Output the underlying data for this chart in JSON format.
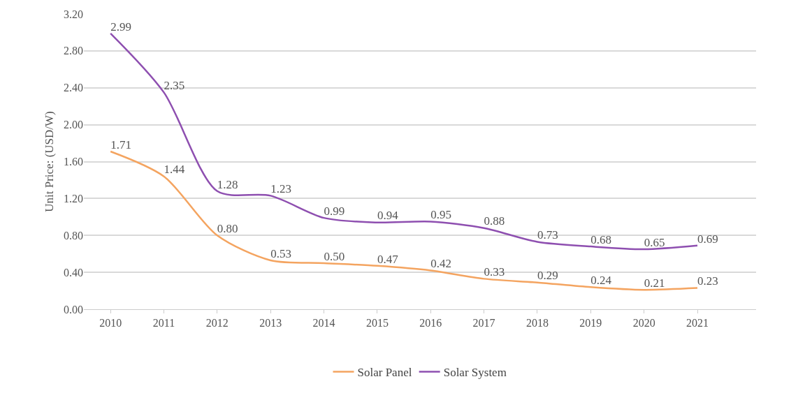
{
  "chart_data": {
    "type": "line",
    "ylabel": "Unit Price: (USD/W)",
    "categories": [
      "2010",
      "2011",
      "2012",
      "2013",
      "2014",
      "2015",
      "2016",
      "2017",
      "2018",
      "2019",
      "2020",
      "2021"
    ],
    "series": [
      {
        "name": "Solar Panel",
        "color": "#f4a460",
        "values": [
          1.71,
          1.44,
          0.8,
          0.53,
          0.5,
          0.47,
          0.42,
          0.33,
          0.29,
          0.24,
          0.21,
          0.23
        ],
        "value_labels": [
          "1.71",
          "1.44",
          "0.80",
          "0.53",
          "0.50",
          "0.47",
          "0.42",
          "0.33",
          "0.29",
          "0.24",
          "0.21",
          "0.23"
        ]
      },
      {
        "name": "Solar System",
        "color": "#8e4fb0",
        "values": [
          2.99,
          2.35,
          1.28,
          1.23,
          0.99,
          0.94,
          0.95,
          0.88,
          0.73,
          0.68,
          0.65,
          0.69
        ],
        "value_labels": [
          "2.99",
          "2.35",
          "1.28",
          "1.23",
          "0.99",
          "0.94",
          "0.95",
          "0.88",
          "0.73",
          "0.68",
          "0.65",
          "0.69"
        ]
      }
    ],
    "ylim": [
      0,
      3.2
    ],
    "yticks": [
      {
        "value": 0,
        "label": "0.00"
      },
      {
        "value": 0.4,
        "label": "0.40"
      },
      {
        "value": 0.8,
        "label": "0.80"
      },
      {
        "value": 1.2,
        "label": "1.20"
      },
      {
        "value": 1.6,
        "label": "1.60"
      },
      {
        "value": 2.0,
        "label": "2.00"
      },
      {
        "value": 2.4,
        "label": "2.40"
      },
      {
        "value": 2.8,
        "label": "2.80"
      },
      {
        "value": 3.2,
        "label": "3.20"
      }
    ],
    "grid": "y",
    "legend": "bottom",
    "marker": "none",
    "line_style": "solid"
  }
}
